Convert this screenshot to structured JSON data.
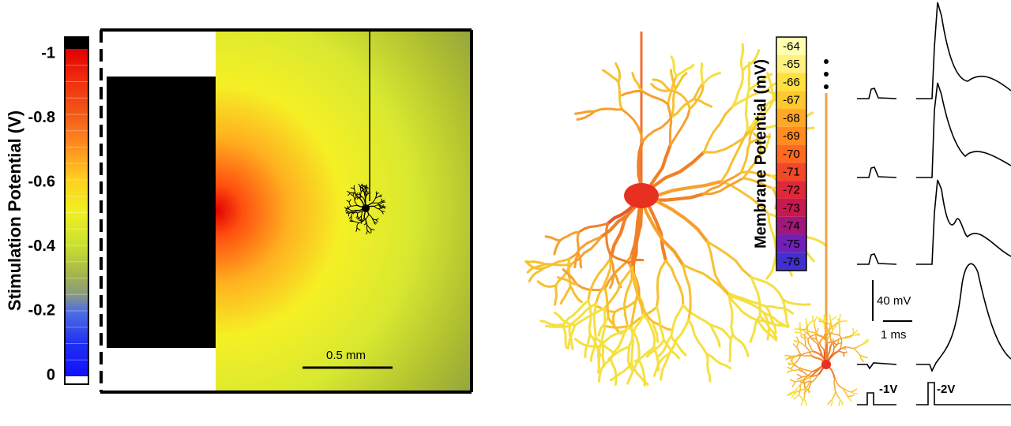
{
  "stimulation_colorbar": {
    "label": "Stimulation Potential (V)",
    "ticks": [
      -1,
      -0.8,
      -0.6,
      -0.4,
      -0.2,
      0
    ]
  },
  "field_panel": {
    "scale_bar": "0.5 mm"
  },
  "membrane_colorbar": {
    "label": "Membrane Potential (mV)",
    "ticks": [
      -64,
      -65,
      -66,
      -67,
      -68,
      -69,
      -70,
      -71,
      -72,
      -73,
      -74,
      -75,
      -76
    ],
    "colors": [
      "#ffffb0",
      "#fff080",
      "#ffe040",
      "#ffc830",
      "#ffa828",
      "#ff8c20",
      "#ff6a20",
      "#f04828",
      "#e02838",
      "#c81850",
      "#a01878",
      "#7020b8",
      "#4030d0"
    ]
  },
  "traces": {
    "voltage_scale": "40 mV",
    "time_scale": "1 ms",
    "stimuli": [
      "-1V",
      "-2V"
    ]
  }
}
